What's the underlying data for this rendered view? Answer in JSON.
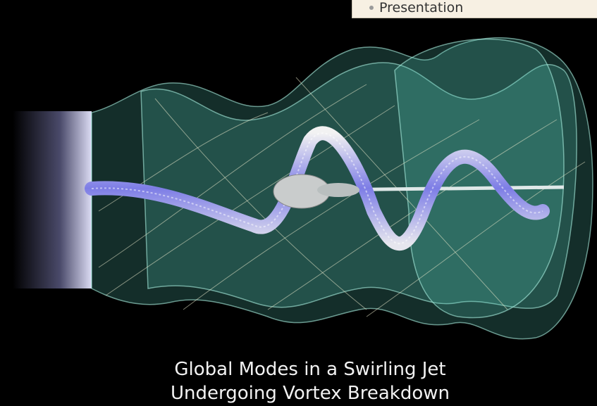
{
  "menu": {
    "items": [
      "Presentation"
    ]
  },
  "caption": {
    "lines": [
      "Global Modes in a Swirling Jet",
      "Undergoing Vortex Breakdown"
    ]
  }
}
